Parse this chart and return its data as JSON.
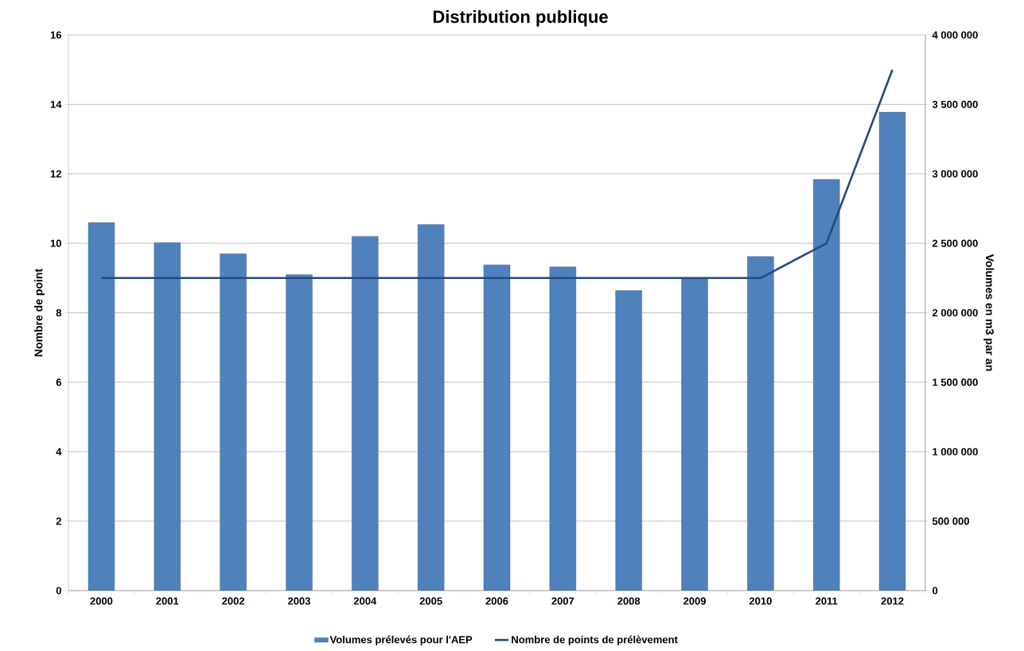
{
  "chart_data": {
    "type": "bar",
    "title": "Distribution publique",
    "categories": [
      "2000",
      "2001",
      "2002",
      "2003",
      "2004",
      "2005",
      "2006",
      "2007",
      "2008",
      "2009",
      "2010",
      "2011",
      "2012"
    ],
    "series": [
      {
        "name": "Volumes prélevés pour l'AEP",
        "axis": "y2",
        "color": "#4f81bd",
        "values": [
          2650000,
          2505000,
          2425000,
          2275000,
          2550000,
          2635000,
          2345000,
          2330000,
          2160000,
          2250000,
          2405000,
          2960000,
          3445000
        ]
      },
      {
        "name": "Nombre de points de prélèvement",
        "type": "line",
        "color": "#254a7c",
        "values": [
          9,
          9,
          9,
          9,
          9,
          9,
          9,
          9,
          9,
          9,
          9,
          10,
          15
        ]
      }
    ],
    "ylabel": "Nombre de point",
    "y2label": "Volumes en m3 par an",
    "ylim": [
      0,
      16
    ],
    "yticks": [
      0,
      2,
      4,
      6,
      8,
      10,
      12,
      14,
      16
    ],
    "y2lim": [
      0,
      4000000
    ],
    "y2ticks": [
      0,
      {
        "value": 500000,
        "label": "500 000"
      },
      {
        "value": 1000000,
        "label": "1 000 000"
      },
      {
        "value": 1500000,
        "label": "1 500 000"
      },
      {
        "value": 2000000,
        "label": "2 000 000"
      },
      {
        "value": 2500000,
        "label": "2 500 000"
      },
      {
        "value": 3000000,
        "label": "3 000 000"
      },
      {
        "value": 3500000,
        "label": "3 500 000"
      },
      {
        "value": 4000000,
        "label": "4 000 000"
      }
    ],
    "grid": "y",
    "legend": "bottom"
  }
}
